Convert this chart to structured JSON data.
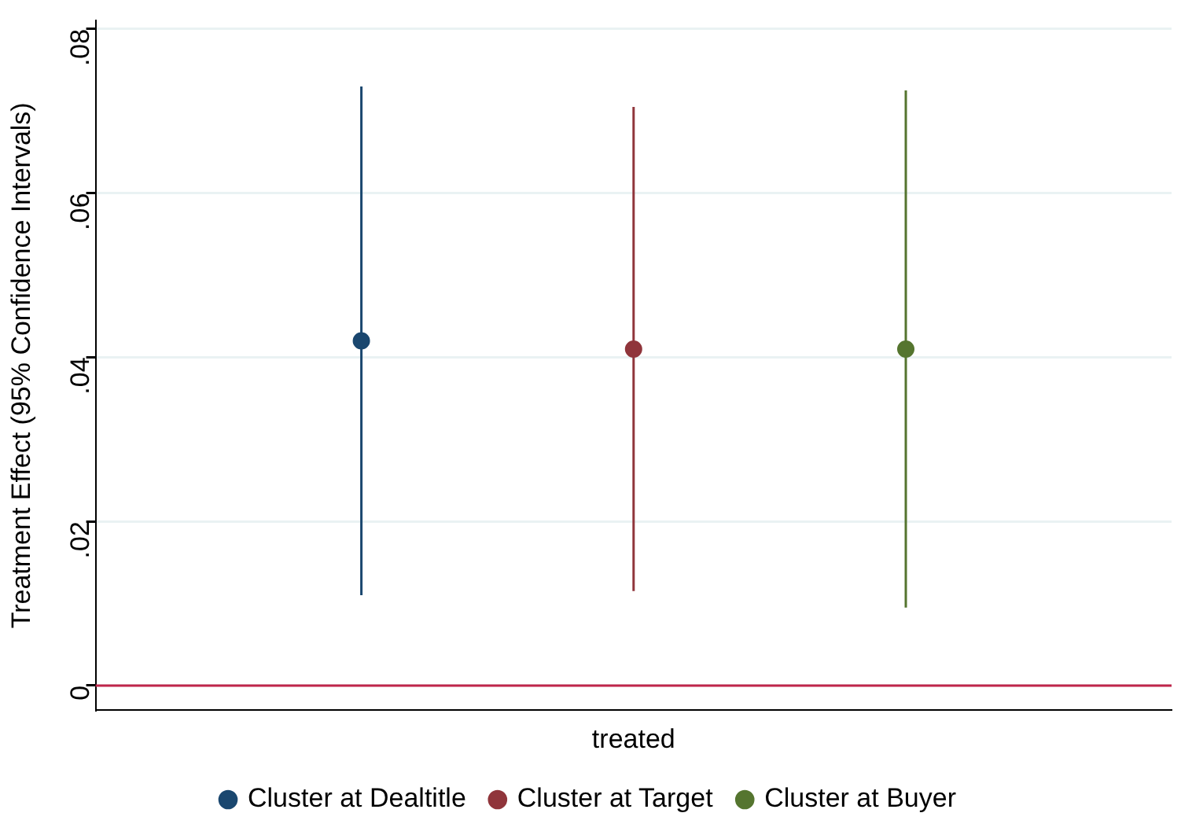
{
  "chart_data": {
    "type": "scatter",
    "ylabel": "Treatment Effect (95% Confidence Intervals)",
    "categories": [
      "treated"
    ],
    "series": [
      {
        "name": "Cluster at Dealtitle",
        "color": "#1a476f",
        "values": [
          0.042
        ],
        "errors": [
          [
            0.011,
            0.073
          ]
        ]
      },
      {
        "name": "Cluster at Target",
        "color": "#90353b",
        "values": [
          0.041
        ],
        "errors": [
          [
            0.0115,
            0.0705
          ]
        ]
      },
      {
        "name": "Cluster at Buyer",
        "color": "#55752f",
        "values": [
          0.041
        ],
        "errors": [
          [
            0.0095,
            0.0725
          ]
        ]
      }
    ],
    "ylim": [
      -0.003,
      0.081
    ],
    "yticks": [
      0,
      {
        "value": 0.02,
        "label": ".02"
      },
      {
        "value": 0.04,
        "label": ".04"
      },
      {
        "value": 0.06,
        "label": ".06"
      },
      {
        "value": 0.08,
        "label": ".08"
      }
    ],
    "grid": "y",
    "legend": "bottom",
    "marker": "circle",
    "ref_lines": [
      {
        "axis": "y",
        "value": 0,
        "color": "#c0254a"
      }
    ]
  }
}
